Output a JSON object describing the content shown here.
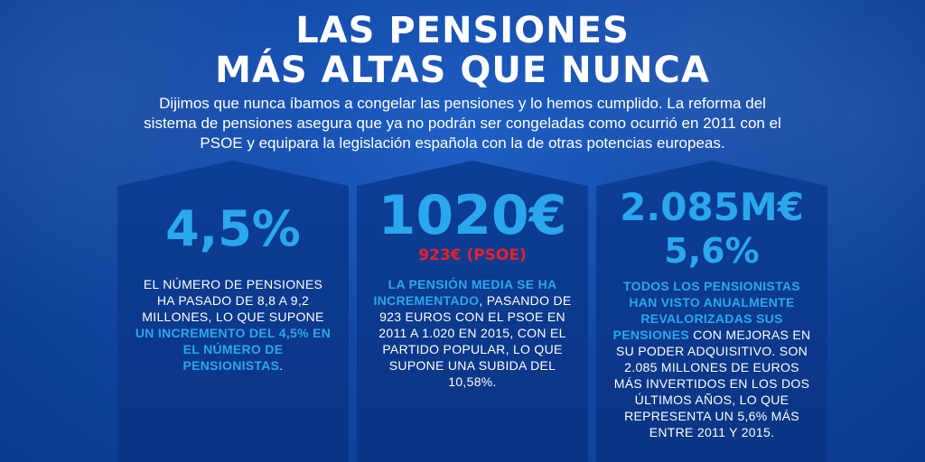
{
  "title": {
    "line1": "LAS PENSIONES",
    "line2": "MÁS ALTAS QUE NUNCA"
  },
  "intro": "Dijimos que nunca íbamos a congelar las pensiones y lo hemos cumplido. La reforma del sistema de pensiones asegura que ya no podrán ser congeladas como ocurrió en 2011 con el PSOE y equipara la legislación española con la de otras potencias europeas.",
  "colors": {
    "accent": "#2aa7ee",
    "alert": "#e8212b",
    "panel": "#0d3e96",
    "background": "#134aa8"
  },
  "panels": [
    {
      "stat": "4,5%",
      "text_before": "EL NÚMERO DE PENSIONES HA PASADO DE 8,8 A 9,2 MILLONES, LO QUE SUPONE ",
      "highlight": "UN INCREMENTO DEL 4,5% EN EL NÚMERO DE PENSIONISTAS",
      "text_after": "."
    },
    {
      "stat": "1020€",
      "sub_stat": "923€ (PSOE)",
      "highlight": "LA PENSIÓN MEDIA SE HA INCREMENTADO",
      "text_after": ", PASANDO DE 923 EUROS CON EL PSOE EN 2011 A 1.020 EN 2015, CON EL PARTIDO POPULAR, LO QUE SUPONE UNA SUBIDA DEL 10,58%."
    },
    {
      "stat": "2.085M€",
      "stat2": "5,6%",
      "highlight": "TODOS LOS PENSIONISTAS HAN VISTO ANUALMENTE REVALORIZADAS SUS PENSIONES",
      "text_after": " CON MEJORAS EN SU PODER ADQUISITIVO. SON 2.085 MILLONES DE EUROS MÁS INVERTIDOS EN LOS DOS ÚLTIMOS AÑOS, LO QUE REPRESENTA UN 5,6% MÁS ENTRE 2011 Y 2015."
    }
  ]
}
